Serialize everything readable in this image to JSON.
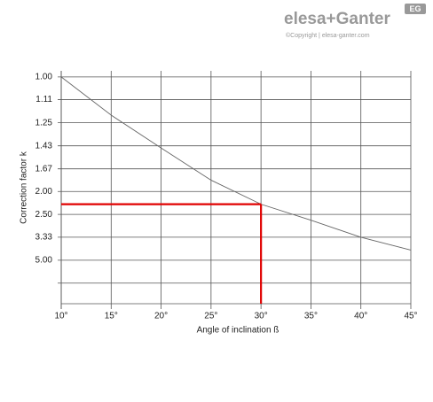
{
  "brand": {
    "name": "elesa+Ganter",
    "copyright": "©Copyright | elesa-ganter.com",
    "badge": "EG"
  },
  "chart_data": {
    "type": "line",
    "x_label": "Angle of inclination ß",
    "y_label": "Correction factor k",
    "yscale": "reciprocal",
    "grid": true,
    "xlim": [
      10,
      45
    ],
    "xticks": [
      {
        "value": 10,
        "label": "10°"
      },
      {
        "value": 15,
        "label": "15°"
      },
      {
        "value": 20,
        "label": "20°"
      },
      {
        "value": 25,
        "label": "25°"
      },
      {
        "value": 30,
        "label": "30°"
      },
      {
        "value": 35,
        "label": "35°"
      },
      {
        "value": 40,
        "label": "40°"
      },
      {
        "value": 45,
        "label": "45°"
      }
    ],
    "ylim": [
      0.974,
      100
    ],
    "yticks": [
      {
        "value": 1,
        "label": "1.00"
      },
      1.11,
      1.25,
      1.43,
      1.67,
      {
        "value": 2,
        "label": "2.00"
      },
      {
        "value": 2.5,
        "label": "2.50"
      },
      3.33,
      {
        "value": 5,
        "label": "5.00"
      },
      {
        "value": 10,
        "label": null
      }
    ],
    "x": [
      10,
      15,
      20,
      25,
      30,
      35,
      40,
      45
    ],
    "series": [
      {
        "color": "#666666",
        "values": [
          1.0,
          1.2,
          1.45,
          1.82,
          2.25,
          2.67,
          3.33,
          4.1
        ]
      }
    ],
    "marker": {
      "x": 30,
      "y": 2.25,
      "color": "#e00000"
    }
  }
}
